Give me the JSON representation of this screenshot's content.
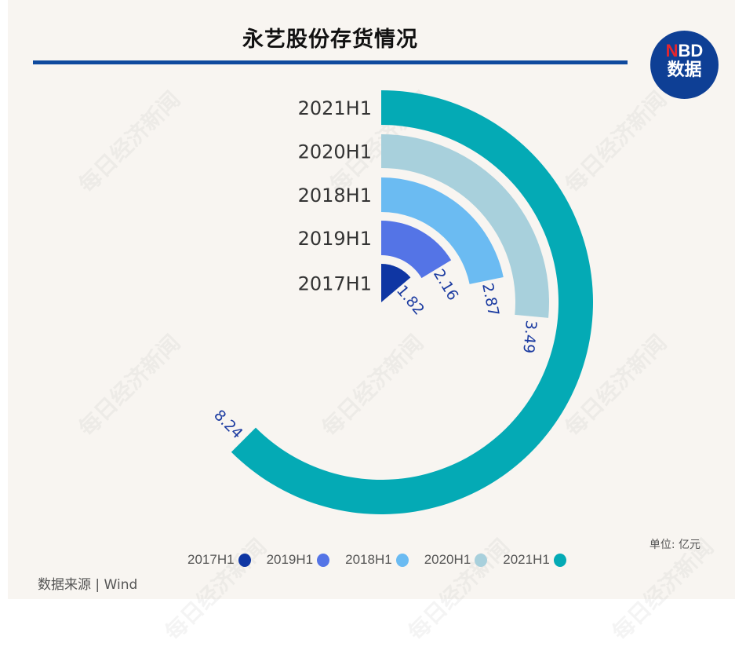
{
  "header": {
    "title": "永艺股份存货情况",
    "logo_top": "BD",
    "logo_top_accent": "N",
    "logo_bottom": "数据"
  },
  "watermark": "每日经济新闻",
  "unit_label": "单位: 亿元",
  "source_label": "数据来源 | Wind",
  "chart_data": {
    "type": "bar",
    "subtype": "radial-bar (polar, start at 12 o'clock, clockwise)",
    "title": "永艺股份存货情况",
    "unit": "亿元",
    "categories": [
      "2017H1",
      "2019H1",
      "2018H1",
      "2020H1",
      "2021H1"
    ],
    "values": [
      1.82,
      2.16,
      2.87,
      3.49,
      8.24
    ],
    "colors": [
      "#0f36a3",
      "#5474e6",
      "#6bbbf2",
      "#a8d0dc",
      "#04aab5"
    ],
    "label_color": "#1a3aa0",
    "angle_max_value": 13.18,
    "legend_position": "bottom",
    "grid": false
  },
  "legend": [
    {
      "label": "2017H1",
      "color": "#0f36a3"
    },
    {
      "label": "2019H1",
      "color": "#5474e6"
    },
    {
      "label": "2018H1",
      "color": "#6bbbf2"
    },
    {
      "label": "2020H1",
      "color": "#a8d0dc"
    },
    {
      "label": "2021H1",
      "color": "#04aab5"
    }
  ]
}
